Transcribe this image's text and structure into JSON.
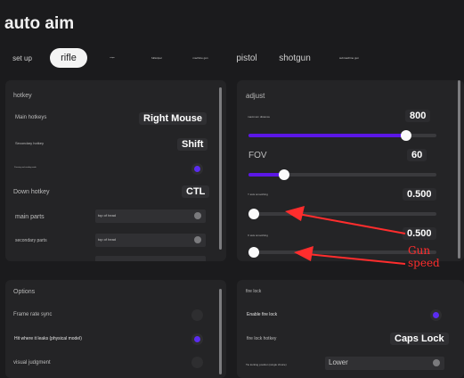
{
  "app": {
    "title": "auto aim"
  },
  "tabs": [
    {
      "label": "set up"
    },
    {
      "label": "rifle",
      "active": true
    },
    {
      "label": "sniper"
    },
    {
      "label": "fullsniper"
    },
    {
      "label": "machine gun"
    },
    {
      "label": "pistol"
    },
    {
      "label": "shotgun"
    },
    {
      "label": "submachine gun"
    }
  ],
  "hotkey": {
    "title": "hotkey",
    "main_label": "Main hotkeys",
    "main_value": "Right Mouse",
    "secondary_label": "Secondary hotkey",
    "secondary_value": "Shift",
    "pressing_label": "Pressing and sending mode",
    "pressing_on": true,
    "down_label": "Down hotkey",
    "down_value": "CTL",
    "main_parts_label": "main parts",
    "main_parts_value": "top of head",
    "secondary_parts_label": "secondary parts",
    "secondary_parts_value": "top of head"
  },
  "adjust": {
    "title": "adjust",
    "distance_label": "maximum distance",
    "distance_value": "800",
    "distance_level": 0.84,
    "fov_label": "FOV",
    "fov_value": "60",
    "fov_level": 0.19,
    "y_label": "Y axis smoothing",
    "y_value": "0.500",
    "y_level": 0.03,
    "x_label": "X axis smoothing",
    "x_value": "0.500",
    "x_level": 0.03
  },
  "options": {
    "title": "Options",
    "frame_label": "Frame rate sync",
    "frame_on": false,
    "hit_label": "Hit where it leaks (physical model)",
    "hit_on": true,
    "visual_label": "visual judgment",
    "visual_on": false
  },
  "firelock": {
    "title": "fire lock",
    "enable_label": "Enable fire lock",
    "enable_on": true,
    "hotkey_label": "fire lock hotkey",
    "hotkey_value": "Caps Lock",
    "position_label": "Tie locking position (single choice)",
    "position_value": "Lower"
  },
  "annotation": {
    "text": "Gun speed",
    "color": "#ff2d2d"
  },
  "colors": {
    "accent": "#5b17e6",
    "background": "#1b1b1d",
    "panel": "#242426"
  }
}
